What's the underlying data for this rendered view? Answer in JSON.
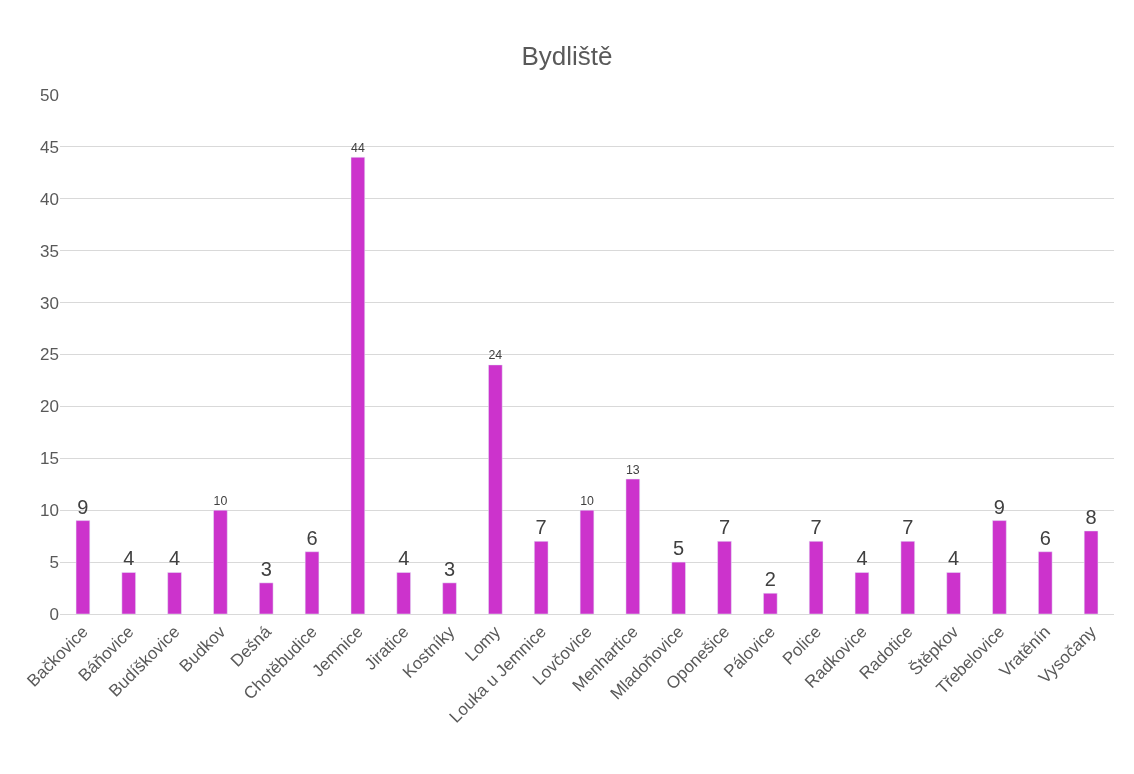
{
  "chart_data": {
    "type": "bar",
    "title": "Bydliště",
    "categories": [
      "Bačkovice",
      "Báňovice",
      "Budíškovice",
      "Budkov",
      "Dešná",
      "Chotěbudice",
      "Jemnice",
      "Jiratice",
      "Kostníky",
      "Lomy",
      "Louka u Jemnice",
      "Lovčovice",
      "Menhartice",
      "Mladoňovice",
      "Oponešice",
      "Pálovice",
      "Police",
      "Radkovice",
      "Radotice",
      "Štěpkov",
      "Třebelovice",
      "Vratěnín",
      "Vysočany"
    ],
    "values": [
      9,
      4,
      4,
      10,
      3,
      6,
      44,
      4,
      3,
      24,
      7,
      10,
      13,
      5,
      7,
      2,
      7,
      4,
      7,
      4,
      9,
      6,
      8
    ],
    "color": "#cc33cc",
    "ylim": [
      0,
      50
    ],
    "yticks": [
      0,
      5,
      10,
      15,
      20,
      25,
      30,
      35,
      40,
      45,
      50
    ],
    "grid": "y",
    "data_labels": true
  }
}
